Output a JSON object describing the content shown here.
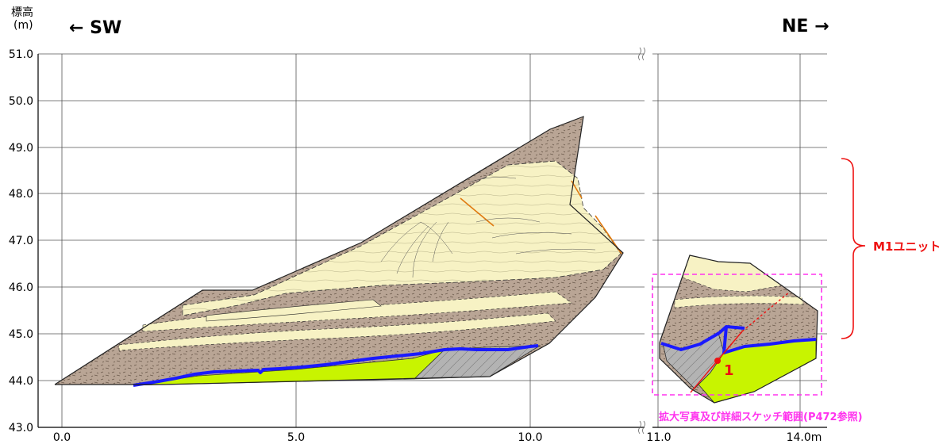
{
  "header": {
    "axis_title_line1": "標高",
    "axis_title_line2": "(m)",
    "left_direction": "← SW",
    "right_direction": "NE →"
  },
  "axis": {
    "y_ticks": [
      "51.0",
      "50.0",
      "49.0",
      "48.0",
      "47.0",
      "46.0",
      "45.0",
      "44.0",
      "43.0"
    ],
    "x_ticks": [
      "0.0",
      "5.0",
      "10.0",
      "11.0",
      "14.0m"
    ]
  },
  "annotations": {
    "unit_label": "M1ユニット",
    "point_label": "1",
    "detail_box_caption": "拡大写真及び詳細スケッチ範囲(P472参照)"
  },
  "colors": {
    "sand": "#f7f2c4",
    "silt_brown": "#b9a595",
    "green_layer": "#c8f400",
    "gray_layer": "#b3b3b3",
    "blue_boundary": "#1a1aff",
    "orange_fault": "#e07a10",
    "red": "#ee1111",
    "magenta": "#ff33ee"
  }
}
